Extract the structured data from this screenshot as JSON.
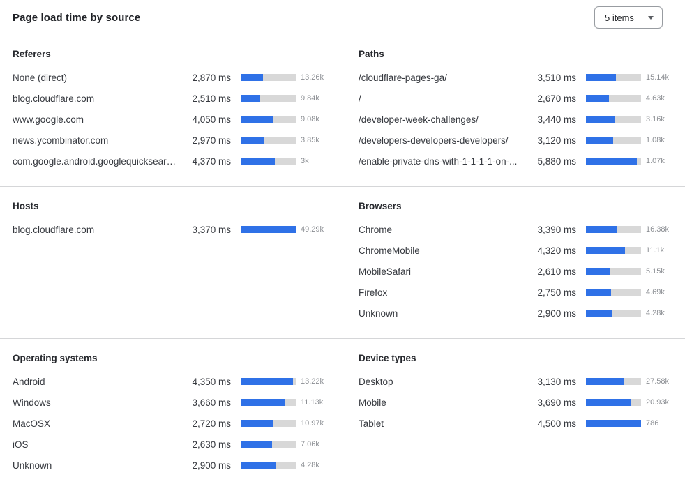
{
  "header": {
    "title": "Page load time by source",
    "items_dropdown": {
      "value": "5 items"
    }
  },
  "colors": {
    "bar_fill": "#2f71e7",
    "bar_track": "#d8d8d8",
    "divider": "#d5d6d8"
  },
  "chart_data": [
    {
      "type": "bar",
      "title": "Referers",
      "unit": "ms",
      "bar_scale_ms": 7000,
      "rows": [
        {
          "label": "None (direct)",
          "ms": 2870,
          "ms_label": "2,870 ms",
          "count": "13.26k"
        },
        {
          "label": "blog.cloudflare.com",
          "ms": 2510,
          "ms_label": "2,510 ms",
          "count": "9.84k"
        },
        {
          "label": "www.google.com",
          "ms": 4050,
          "ms_label": "4,050 ms",
          "count": "9.08k"
        },
        {
          "label": "news.ycombinator.com",
          "ms": 2970,
          "ms_label": "2,970 ms",
          "count": "3.85k"
        },
        {
          "label": "com.google.android.googlequicksearc...",
          "ms": 4370,
          "ms_label": "4,370 ms",
          "count": "3k"
        }
      ]
    },
    {
      "type": "bar",
      "title": "Paths",
      "unit": "ms",
      "bar_scale_ms": 6400,
      "rows": [
        {
          "label": "/cloudflare-pages-ga/",
          "ms": 3510,
          "ms_label": "3,510 ms",
          "count": "15.14k"
        },
        {
          "label": "/",
          "ms": 2670,
          "ms_label": "2,670 ms",
          "count": "4.63k"
        },
        {
          "label": "/developer-week-challenges/",
          "ms": 3440,
          "ms_label": "3,440 ms",
          "count": "3.16k"
        },
        {
          "label": "/developers-developers-developers/",
          "ms": 3120,
          "ms_label": "3,120 ms",
          "count": "1.08k"
        },
        {
          "label": "/enable-private-dns-with-1-1-1-1-on-...",
          "ms": 5880,
          "ms_label": "5,880 ms",
          "count": "1.07k"
        }
      ]
    },
    {
      "type": "bar",
      "title": "Hosts",
      "unit": "ms",
      "bar_scale_ms": 3370,
      "rows": [
        {
          "label": "blog.cloudflare.com",
          "ms": 3370,
          "ms_label": "3,370 ms",
          "count": "49.29k"
        }
      ]
    },
    {
      "type": "bar",
      "title": "Browsers",
      "unit": "ms",
      "bar_scale_ms": 6100,
      "rows": [
        {
          "label": "Chrome",
          "ms": 3390,
          "ms_label": "3,390 ms",
          "count": "16.38k"
        },
        {
          "label": "ChromeMobile",
          "ms": 4320,
          "ms_label": "4,320 ms",
          "count": "11.1k"
        },
        {
          "label": "MobileSafari",
          "ms": 2610,
          "ms_label": "2,610 ms",
          "count": "5.15k"
        },
        {
          "label": "Firefox",
          "ms": 2750,
          "ms_label": "2,750 ms",
          "count": "4.69k"
        },
        {
          "label": "Unknown",
          "ms": 2900,
          "ms_label": "2,900 ms",
          "count": "4.28k"
        }
      ]
    },
    {
      "type": "bar",
      "title": "Operating systems",
      "unit": "ms",
      "bar_scale_ms": 4600,
      "rows": [
        {
          "label": "Android",
          "ms": 4350,
          "ms_label": "4,350 ms",
          "count": "13.22k"
        },
        {
          "label": "Windows",
          "ms": 3660,
          "ms_label": "3,660 ms",
          "count": "11.13k"
        },
        {
          "label": "MacOSX",
          "ms": 2720,
          "ms_label": "2,720 ms",
          "count": "10.97k"
        },
        {
          "label": "iOS",
          "ms": 2630,
          "ms_label": "2,630 ms",
          "count": "7.06k"
        },
        {
          "label": "Unknown",
          "ms": 2900,
          "ms_label": "2,900 ms",
          "count": "4.28k"
        }
      ]
    },
    {
      "type": "bar",
      "title": "Device types",
      "unit": "ms",
      "bar_scale_ms": 4500,
      "rows": [
        {
          "label": "Desktop",
          "ms": 3130,
          "ms_label": "3,130 ms",
          "count": "27.58k"
        },
        {
          "label": "Mobile",
          "ms": 3690,
          "ms_label": "3,690 ms",
          "count": "20.93k"
        },
        {
          "label": "Tablet",
          "ms": 4500,
          "ms_label": "4,500 ms",
          "count": "786"
        }
      ]
    }
  ]
}
